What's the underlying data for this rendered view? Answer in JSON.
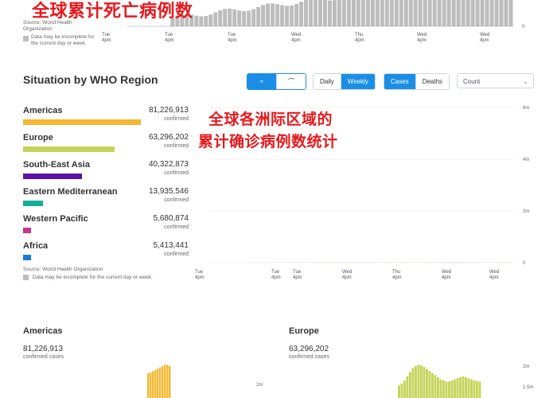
{
  "top": {
    "overlay_title": "全球累计死亡病例数",
    "source_label": "Source:",
    "source_name": "World Health Organization",
    "note": "Data may be incomplete for the current day or week.",
    "x_ticks": [
      "Tue\n4pm",
      "Tue\n4pm",
      "Tue\n4pm",
      "Wed\n4pm",
      "Thu\n4pm",
      "Wed\n4pm",
      "Wed\n4pm"
    ],
    "y_tick": "0"
  },
  "section": {
    "title": "Situation by WHO Region",
    "view_buttons": [
      "≈",
      "⌒"
    ],
    "period_buttons": [
      "Daily",
      "Weekly"
    ],
    "period_active": "Weekly",
    "metric_buttons": [
      "Cases",
      "Deaths"
    ],
    "metric_active": "Cases",
    "select_value": "Count",
    "overlay_title_line1": "全球各洲际区域的",
    "overlay_title_line2": "累计确诊病例数统计",
    "source_text": "Source: World Health Organization",
    "note": "Data may be incomplete for the current day or week."
  },
  "regions": [
    {
      "name": "Americas",
      "value": "81,226,913",
      "sub": "confirmed",
      "color": "#f5b731",
      "bar_fraction": 1.0
    },
    {
      "name": "Europe",
      "value": "63,296,202",
      "sub": "confirmed",
      "color": "#c4d45a",
      "bar_fraction": 0.78
    },
    {
      "name": "South-East Asia",
      "value": "40,322,873",
      "sub": "confirmed",
      "color": "#5b12a8",
      "bar_fraction": 0.5
    },
    {
      "name": "Eastern Mediterranean",
      "value": "13,935,546",
      "sub": "confirmed",
      "color": "#14b095",
      "bar_fraction": 0.17
    },
    {
      "name": "Western Pacific",
      "value": "5,680,874",
      "sub": "confirmed",
      "color": "#c9348f",
      "bar_fraction": 0.07
    },
    {
      "name": "Africa",
      "value": "5,413,441",
      "sub": "confirmed",
      "color": "#1b7cd6",
      "bar_fraction": 0.067
    }
  ],
  "chart_data": {
    "type": "bar",
    "stacked": true,
    "x_tick_labels": [
      "Tue\n4pm",
      "Tue\n4pm",
      "Tue\n4pm",
      "Wed\n4pm",
      "Thu\n4pm",
      "Wed\n4pm",
      "Wed\n4pm"
    ],
    "y_tick_labels": [
      "0",
      "2m",
      "4m",
      "6m"
    ],
    "ylim": [
      0,
      6000000
    ],
    "grid": true,
    "series_order": [
      "Africa",
      "Western Pacific",
      "Eastern Mediterranean",
      "South-East Asia",
      "Europe",
      "Americas"
    ],
    "series": [
      {
        "name": "Africa",
        "color": "#1b7cd6",
        "values": [
          0,
          0,
          0,
          0,
          0,
          2,
          3,
          5,
          8,
          10,
          14,
          18,
          22,
          28,
          35,
          45,
          55,
          60,
          70,
          80,
          95,
          110,
          120,
          130,
          140,
          150,
          155,
          160,
          160,
          155,
          150,
          140,
          130,
          120,
          110,
          105,
          100,
          95,
          100,
          105,
          110,
          115,
          120,
          130,
          140,
          150,
          160,
          170,
          180,
          190,
          200,
          210,
          200,
          190,
          180,
          170,
          160,
          150,
          150,
          155,
          160,
          170,
          180,
          190,
          200,
          210,
          220,
          200,
          190,
          180,
          170,
          160,
          155,
          150,
          140,
          150,
          160,
          170,
          180,
          175,
          170
        ]
      },
      {
        "name": "Western Pacific",
        "color": "#c9348f",
        "values": [
          50,
          40,
          30,
          30,
          30,
          40,
          40,
          40,
          40,
          40,
          45,
          45,
          50,
          50,
          50,
          55,
          55,
          60,
          60,
          60,
          65,
          65,
          60,
          60,
          60,
          60,
          60,
          60,
          60,
          55,
          55,
          55,
          55,
          55,
          60,
          60,
          60,
          60,
          60,
          65,
          70,
          70,
          70,
          70,
          70,
          75,
          80,
          80,
          80,
          80,
          85,
          85,
          85,
          90,
          90,
          90,
          90,
          95,
          95,
          100,
          105,
          110,
          115,
          115,
          120,
          120,
          125,
          130,
          140,
          150,
          160,
          170,
          180,
          190,
          210,
          230,
          250,
          270,
          290,
          290,
          280
        ]
      },
      {
        "name": "Eastern Mediterranean",
        "color": "#14b095",
        "values": [
          0,
          0,
          0,
          0,
          0,
          10,
          20,
          30,
          40,
          50,
          60,
          70,
          80,
          100,
          120,
          140,
          160,
          180,
          200,
          200,
          200,
          190,
          180,
          180,
          180,
          180,
          180,
          190,
          200,
          210,
          220,
          230,
          240,
          250,
          260,
          270,
          280,
          290,
          300,
          310,
          320,
          320,
          320,
          310,
          300,
          290,
          280,
          270,
          260,
          250,
          240,
          230,
          230,
          240,
          260,
          280,
          300,
          320,
          330,
          340,
          340,
          330,
          320,
          300,
          280,
          260,
          250,
          240,
          230,
          220,
          210,
          200,
          200,
          210,
          220,
          230,
          240,
          250,
          240,
          230,
          220
        ]
      },
      {
        "name": "South-East Asia",
        "color": "#5b12a8",
        "values": [
          0,
          0,
          0,
          0,
          0,
          0,
          2,
          5,
          10,
          15,
          20,
          30,
          40,
          60,
          80,
          100,
          130,
          160,
          200,
          240,
          280,
          320,
          360,
          400,
          450,
          500,
          560,
          620,
          680,
          720,
          760,
          780,
          790,
          780,
          750,
          720,
          680,
          640,
          600,
          560,
          520,
          480,
          440,
          400,
          380,
          360,
          340,
          320,
          300,
          290,
          280,
          280,
          290,
          300,
          330,
          380,
          450,
          600,
          900,
          1300,
          1900,
          2600,
          3300,
          3700,
          3500,
          3000,
          2400,
          1800,
          1300,
          900,
          650,
          500,
          400,
          350,
          320,
          320,
          330,
          350,
          370,
          380,
          390
        ]
      },
      {
        "name": "Europe",
        "color": "#c4d45a",
        "values": [
          100,
          150,
          200,
          250,
          300,
          400,
          500,
          600,
          700,
          750,
          700,
          650,
          600,
          550,
          500,
          450,
          400,
          380,
          360,
          350,
          350,
          360,
          380,
          400,
          450,
          500,
          600,
          700,
          850,
          1000,
          1200,
          1400,
          1700,
          2100,
          2500,
          2900,
          3100,
          3200,
          3150,
          3000,
          2800,
          2600,
          2400,
          2200,
          2000,
          1800,
          1700,
          1600,
          1600,
          1700,
          1800,
          1900,
          2000,
          2100,
          2000,
          1900,
          1800,
          1700,
          1650,
          1600,
          1550,
          1500,
          1500,
          1500,
          1550,
          1600,
          1500,
          1400,
          1300,
          1300,
          1400,
          1500,
          1600,
          1700,
          1800,
          1900,
          2000,
          2100,
          2200,
          2100,
          2000
        ]
      },
      {
        "name": "Americas",
        "color": "#f5b731",
        "values": [
          0,
          0,
          0,
          0,
          0,
          20,
          60,
          120,
          200,
          300,
          400,
          500,
          600,
          700,
          800,
          900,
          1000,
          1100,
          1200,
          1300,
          1400,
          1500,
          1600,
          1700,
          1800,
          1900,
          2000,
          2100,
          2150,
          2200,
          2200,
          2150,
          2100,
          2050,
          2000,
          1950,
          1950,
          2000,
          2100,
          2200,
          2300,
          2400,
          2500,
          2600,
          2600,
          2500,
          2400,
          2300,
          2200,
          2000,
          1800,
          1600,
          1500,
          1500,
          1600,
          1700,
          1800,
          1800,
          1750,
          1700,
          1600,
          1500,
          1400,
          1300,
          1200,
          1150,
          1150,
          1200,
          1300,
          1400,
          1500,
          1600,
          1500,
          1400,
          1300,
          1200,
          1100,
          1100,
          1200,
          1300,
          1200
        ]
      }
    ]
  },
  "bottom": {
    "left": {
      "title": "Americas",
      "value": "81,226,913",
      "sub": "confirmed cases",
      "y_tick": "2m"
    },
    "right": {
      "title": "Europe",
      "value": "63,296,202",
      "sub": "confirmed cases",
      "y_ticks": [
        "2m",
        "1.5m"
      ]
    }
  }
}
